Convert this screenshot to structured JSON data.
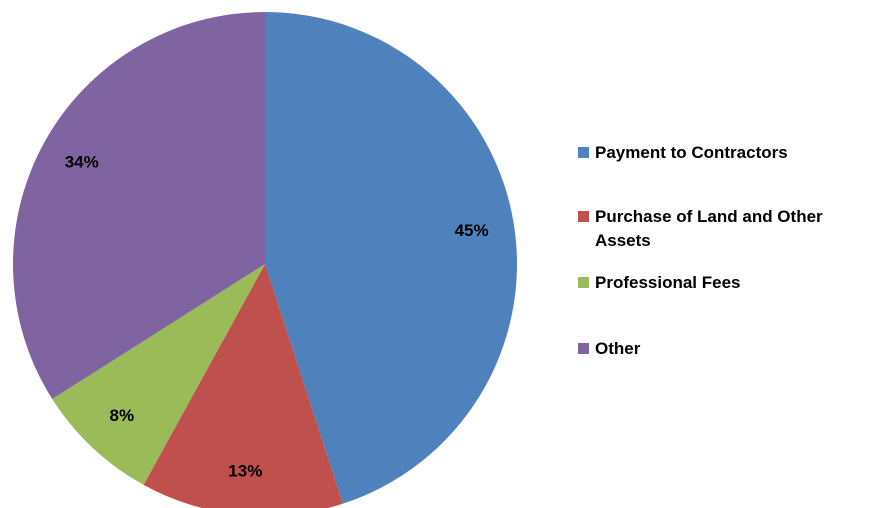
{
  "chart_data": {
    "type": "pie",
    "categories": [
      "Payment to Contractors",
      "Purchase of Land and Other Assets",
      "Professional Fees",
      "Other"
    ],
    "values": [
      45,
      13,
      8,
      34
    ],
    "value_labels": [
      "45%",
      "13%",
      "8%",
      "34%"
    ],
    "colors": [
      "#4f81bd",
      "#c0504d",
      "#9bbb59",
      "#8064a2"
    ],
    "legend": "right"
  }
}
